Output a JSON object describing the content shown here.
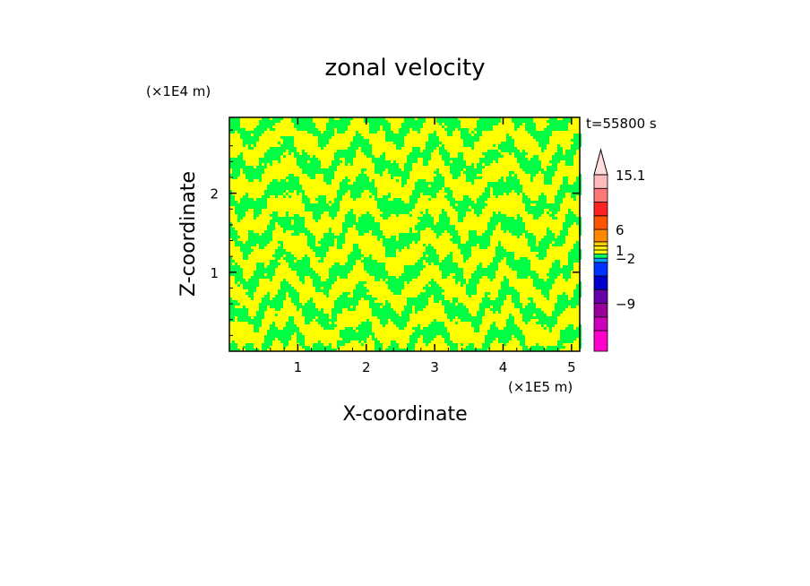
{
  "chart_data": {
    "type": "heatmap",
    "title": "zonal velocity",
    "xlabel": "X-coordinate",
    "ylabel": "Z-coordinate",
    "x_unit": "(×1E5 m)",
    "y_unit": "(×1E4 m)",
    "time_label": "t=55800 s",
    "xlim": [
      0,
      5.12
    ],
    "ylim": [
      0,
      2.96
    ],
    "x_ticks": [
      1,
      2,
      3,
      4,
      5
    ],
    "y_ticks": [
      1,
      2
    ],
    "colorbar": {
      "labels": [
        {
          "text": "15.1",
          "value": 15.1
        },
        {
          "text": "6",
          "value": 6
        },
        {
          "text": "1",
          "value": 1
        },
        {
          "text": "−2",
          "value": -2
        },
        {
          "text": "−9",
          "value": -9
        }
      ],
      "levels": [
        {
          "color": "#ff00cc"
        },
        {
          "color": "#cc00bb"
        },
        {
          "color": "#990099"
        },
        {
          "color": "#6600aa"
        },
        {
          "color": "#0000cc"
        },
        {
          "color": "#0033ff"
        },
        {
          "color": "#00aaff"
        },
        {
          "color": "#00ff66"
        },
        {
          "color": "#ffff00"
        },
        {
          "color": "#ffee00"
        },
        {
          "color": "#ffcc00"
        },
        {
          "color": "#ff8800"
        },
        {
          "color": "#ff5500"
        },
        {
          "color": "#ff2222"
        },
        {
          "color": "#ff7777"
        },
        {
          "color": "#ffbbbb"
        }
      ],
      "extend_arrow_color": "#ffdddd"
    },
    "field_colors": {
      "positive": "#ffff00",
      "negative": "#00ff44"
    },
    "field_description_values": "pattern of alternating small positive (yellow) and small negative (green) zonal velocity bands"
  }
}
